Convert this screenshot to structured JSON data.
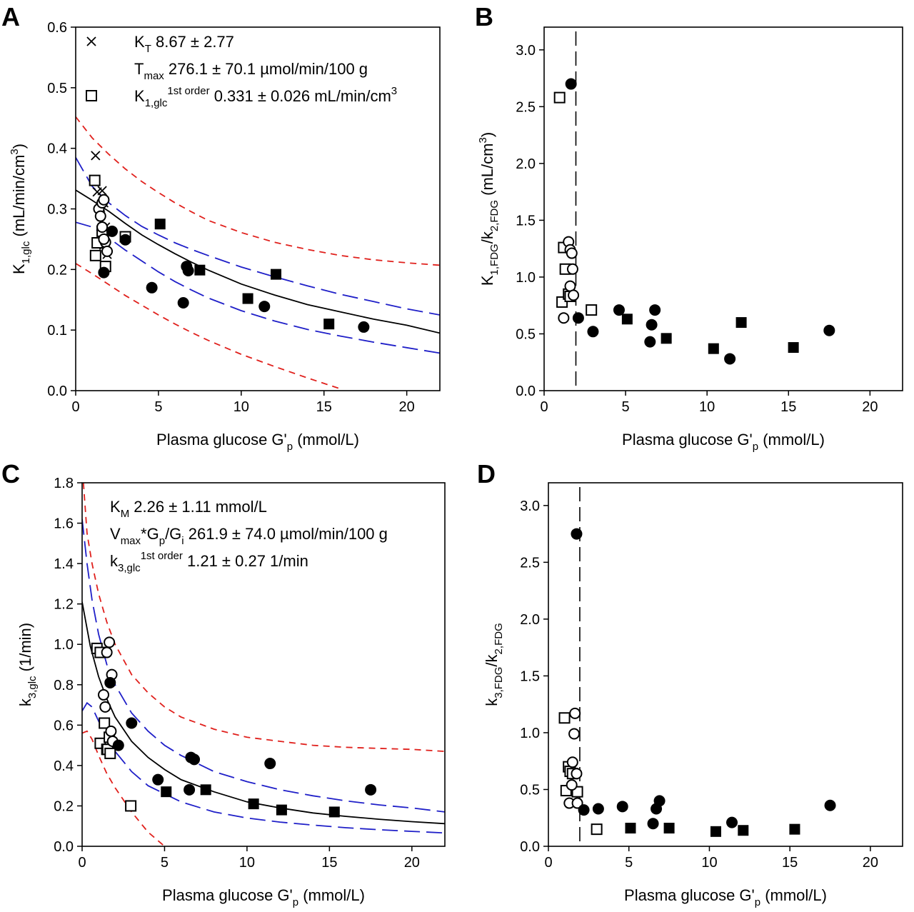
{
  "chart_data": [
    {
      "panel_label": "A",
      "type": "scatter",
      "xlabel": {
        "main": "Plasma glucose G'",
        "sub": "p",
        "tail": " (mmol/L)"
      },
      "ylabel": {
        "main": "K",
        "sub": "1,glc",
        "tail": " (mL/min/cm",
        "sup": "3",
        "end": ")"
      },
      "xlim": [
        0,
        22
      ],
      "ylim": [
        0,
        0.6
      ],
      "xticks": [
        0,
        5,
        10,
        15,
        20
      ],
      "yticks": [
        0.0,
        0.1,
        0.2,
        0.3,
        0.4,
        0.5,
        0.6
      ],
      "annotations": [
        {
          "marker": "x",
          "parts": [
            {
              "t": "K"
            },
            {
              "t": "T",
              "sub": true
            },
            {
              "t": " 8.67 ± 2.77"
            }
          ]
        },
        {
          "marker": "",
          "parts": [
            {
              "t": "T"
            },
            {
              "t": "max",
              "sub": true
            },
            {
              "t": " 276.1 ± 70.1 µmol/min/100 g"
            }
          ]
        },
        {
          "marker": "square-open",
          "parts": [
            {
              "t": "K"
            },
            {
              "t": "1,glc",
              "sub": true
            },
            {
              "t": "1st order",
              "sup": true
            },
            {
              "t": " 0.331 ± 0.026 mL/min/cm"
            },
            {
              "t": "3",
              "sup": true
            }
          ]
        }
      ],
      "curves": [
        {
          "style": "black-solid",
          "x": [
            0,
            1,
            2,
            3,
            4,
            5,
            6,
            7,
            8,
            10,
            12,
            14,
            16,
            18,
            20,
            22
          ],
          "y": [
            0.331,
            0.314,
            0.296,
            0.276,
            0.257,
            0.241,
            0.226,
            0.212,
            0.199,
            0.176,
            0.158,
            0.142,
            0.13,
            0.118,
            0.108,
            0.095
          ]
        },
        {
          "style": "blue-dashed",
          "x": [
            0,
            1,
            2,
            3,
            4,
            5,
            6,
            7,
            8,
            10,
            12,
            14,
            16,
            18,
            20,
            22
          ],
          "y": [
            0.385,
            0.337,
            0.31,
            0.289,
            0.271,
            0.257,
            0.244,
            0.233,
            0.223,
            0.204,
            0.188,
            0.173,
            0.159,
            0.147,
            0.135,
            0.125
          ]
        },
        {
          "style": "blue-dashed",
          "x": [
            0,
            1,
            2,
            3,
            4,
            5,
            6,
            7,
            8,
            10,
            12,
            14,
            16,
            18,
            20,
            22
          ],
          "y": [
            0.278,
            0.27,
            0.252,
            0.232,
            0.214,
            0.196,
            0.18,
            0.166,
            0.153,
            0.132,
            0.115,
            0.101,
            0.09,
            0.08,
            0.071,
            0.062
          ]
        },
        {
          "style": "red-dashed",
          "x": [
            0,
            1,
            2,
            3,
            4,
            5,
            6,
            7,
            8,
            10,
            12,
            14,
            16,
            18,
            20,
            22
          ],
          "y": [
            0.452,
            0.417,
            0.39,
            0.366,
            0.345,
            0.327,
            0.31,
            0.295,
            0.281,
            0.261,
            0.245,
            0.233,
            0.223,
            0.216,
            0.211,
            0.207
          ]
        },
        {
          "style": "red-dashed",
          "x": [
            0,
            1,
            2,
            3,
            4,
            5,
            6,
            7,
            8,
            10,
            12,
            14,
            16
          ],
          "y": [
            0.21,
            0.193,
            0.175,
            0.157,
            0.141,
            0.125,
            0.11,
            0.096,
            0.083,
            0.06,
            0.04,
            0.021,
            0.003
          ]
        }
      ],
      "series": [
        {
          "marker": "x",
          "x": [
            1.2,
            1.3,
            1.5,
            1.6,
            1.7,
            1.8,
            1.8,
            1.9,
            1.5,
            1.6,
            1.7
          ],
          "y": [
            0.388,
            0.328,
            0.3,
            0.33,
            0.31,
            0.27,
            0.25,
            0.225,
            0.29,
            0.262,
            0.24
          ]
        },
        {
          "marker": "square-open",
          "x": [
            1.15,
            1.2,
            1.3,
            1.6,
            1.8,
            3.0
          ],
          "y": [
            0.347,
            0.223,
            0.244,
            0.263,
            0.205,
            0.254
          ]
        },
        {
          "marker": "circle-open",
          "x": [
            1.4,
            1.5,
            1.6,
            1.7,
            1.8,
            1.9,
            1.6,
            1.7
          ],
          "y": [
            0.3,
            0.288,
            0.31,
            0.315,
            0.245,
            0.23,
            0.27,
            0.25
          ]
        },
        {
          "marker": "circle-filled",
          "x": [
            1.7,
            2.2,
            3.0,
            4.6,
            6.5,
            6.7,
            6.8,
            11.4,
            17.4
          ],
          "y": [
            0.195,
            0.263,
            0.249,
            0.17,
            0.145,
            0.205,
            0.198,
            0.139,
            0.105
          ]
        },
        {
          "marker": "square-filled",
          "x": [
            5.1,
            7.5,
            10.4,
            12.1,
            15.3
          ],
          "y": [
            0.275,
            0.199,
            0.152,
            0.192,
            0.11
          ]
        }
      ]
    },
    {
      "panel_label": "B",
      "type": "scatter",
      "xlabel": {
        "main": "Plasma glucose G'",
        "sub": "p",
        "tail": " (mmol/L)"
      },
      "ylabel": {
        "main": "K",
        "sub": "1,FDG",
        "tail": "/k",
        "sub2": "2,FDG",
        "tail2": " (mL/cm",
        "sup": "3",
        "end": ")"
      },
      "xlim": [
        0,
        22
      ],
      "ylim": [
        0,
        3.2
      ],
      "xticks": [
        0,
        5,
        10,
        15,
        20
      ],
      "yticks": [
        0.0,
        0.5,
        1.0,
        1.5,
        2.0,
        2.5,
        3.0
      ],
      "vline_x": 1.95,
      "series": [
        {
          "marker": "square-open",
          "x": [
            0.95,
            1.1,
            1.2,
            1.3,
            1.5,
            1.6,
            2.9
          ],
          "y": [
            2.58,
            0.78,
            1.26,
            1.07,
            0.85,
            0.83,
            0.71
          ]
        },
        {
          "marker": "circle-open",
          "x": [
            1.2,
            1.5,
            1.6,
            1.6,
            1.7,
            1.75,
            1.8
          ],
          "y": [
            0.64,
            1.31,
            0.92,
            1.24,
            1.21,
            1.07,
            0.84
          ]
        },
        {
          "marker": "circle-filled",
          "x": [
            1.65,
            2.1,
            3.0,
            4.6,
            6.5,
            6.6,
            6.8,
            11.4,
            17.5
          ],
          "y": [
            2.7,
            0.64,
            0.52,
            0.71,
            0.43,
            0.58,
            0.71,
            0.28,
            0.53
          ]
        },
        {
          "marker": "square-filled",
          "x": [
            5.1,
            7.5,
            10.4,
            12.1,
            15.3
          ],
          "y": [
            0.63,
            0.46,
            0.37,
            0.6,
            0.38
          ]
        }
      ]
    },
    {
      "panel_label": "C",
      "type": "scatter",
      "xlabel": {
        "main": "Plasma glucose G'",
        "sub": "p",
        "tail": " (mmol/L)"
      },
      "ylabel": {
        "main": "k",
        "sub": "3,glc",
        "tail": " (1/min)"
      },
      "xlim": [
        0,
        22
      ],
      "ylim": [
        0,
        1.8
      ],
      "xticks": [
        0,
        5,
        10,
        15,
        20
      ],
      "yticks": [
        0.0,
        0.2,
        0.4,
        0.6,
        0.8,
        1.0,
        1.2,
        1.4,
        1.6,
        1.8
      ],
      "annotations": [
        {
          "marker": "",
          "parts": [
            {
              "t": "K"
            },
            {
              "t": "M",
              "sub": true
            },
            {
              "t": " 2.26 ± 1.11 mmol/L"
            }
          ]
        },
        {
          "marker": "",
          "parts": [
            {
              "t": "V"
            },
            {
              "t": "max",
              "sub": true
            },
            {
              "t": "*G"
            },
            {
              "t": "p",
              "sub": true
            },
            {
              "t": "/G"
            },
            {
              "t": "i",
              "sub": true
            },
            {
              "t": " 261.9 ± 74.0 µmol/min/100 g"
            }
          ]
        },
        {
          "marker": "",
          "parts": [
            {
              "t": "k"
            },
            {
              "t": "3,glc",
              "sub": true
            },
            {
              "t": "1st order",
              "sup": true
            },
            {
              "t": " 1.21 ± 0.27 1/min"
            }
          ]
        }
      ],
      "curves": [
        {
          "style": "black-solid",
          "x": [
            0,
            0.5,
            1,
            1.5,
            2,
            3,
            4,
            5,
            6,
            8,
            10,
            12,
            14,
            16,
            18,
            20,
            22
          ],
          "y": [
            1.21,
            0.99,
            0.84,
            0.73,
            0.64,
            0.52,
            0.44,
            0.38,
            0.33,
            0.27,
            0.22,
            0.19,
            0.165,
            0.148,
            0.134,
            0.122,
            0.112
          ]
        },
        {
          "style": "blue-dashed",
          "x": [
            0,
            0.3,
            0.6,
            1,
            1.5,
            2,
            3,
            4,
            5,
            6,
            8,
            10,
            12,
            14,
            16,
            18,
            20,
            22
          ],
          "y": [
            1.62,
            1.4,
            1.22,
            1.05,
            0.9,
            0.8,
            0.66,
            0.57,
            0.5,
            0.45,
            0.37,
            0.32,
            0.28,
            0.25,
            0.225,
            0.205,
            0.19,
            0.17
          ]
        },
        {
          "style": "blue-dashed",
          "x": [
            0,
            0.3,
            0.6,
            1,
            1.5,
            2,
            3,
            4,
            5,
            6,
            8,
            10,
            12,
            14,
            16,
            18,
            20,
            22
          ],
          "y": [
            0.67,
            0.71,
            0.69,
            0.62,
            0.54,
            0.47,
            0.37,
            0.3,
            0.26,
            0.22,
            0.17,
            0.14,
            0.12,
            0.105,
            0.092,
            0.082,
            0.074,
            0.066
          ]
        },
        {
          "style": "red-dashed",
          "x": [
            0.08,
            0.3,
            0.6,
            1,
            1.5,
            2,
            3,
            4,
            5,
            6,
            8,
            10,
            12,
            14,
            16,
            18,
            20,
            22
          ],
          "y": [
            1.8,
            1.55,
            1.4,
            1.25,
            1.11,
            1.0,
            0.85,
            0.76,
            0.69,
            0.64,
            0.58,
            0.54,
            0.52,
            0.5,
            0.49,
            0.485,
            0.48,
            0.47
          ]
        },
        {
          "style": "red-dashed",
          "x": [
            0,
            0.3,
            0.6,
            1,
            1.5,
            2,
            3,
            4,
            5
          ],
          "y": [
            0.56,
            0.57,
            0.53,
            0.45,
            0.36,
            0.29,
            0.17,
            0.07,
            0.0
          ]
        }
      ],
      "series": [
        {
          "marker": "square-open",
          "x": [
            0.9,
            1.1,
            1.1,
            1.35,
            1.5,
            1.55,
            1.65,
            1.7,
            2.95
          ],
          "y": [
            0.98,
            0.96,
            0.51,
            0.61,
            0.48,
            0.48,
            0.54,
            0.46,
            0.2
          ]
        },
        {
          "marker": "circle-open",
          "x": [
            1.3,
            1.4,
            1.5,
            1.65,
            1.75,
            1.8,
            1.85
          ],
          "y": [
            0.75,
            0.69,
            0.96,
            1.01,
            0.57,
            0.85,
            0.52
          ]
        },
        {
          "marker": "circle-filled",
          "x": [
            1.7,
            2.2,
            3.0,
            4.6,
            6.5,
            6.6,
            6.8,
            11.4,
            17.5
          ],
          "y": [
            0.81,
            0.5,
            0.61,
            0.33,
            0.28,
            0.44,
            0.43,
            0.41,
            0.28
          ]
        },
        {
          "marker": "square-filled",
          "x": [
            5.1,
            7.5,
            10.4,
            12.1,
            15.3
          ],
          "y": [
            0.27,
            0.28,
            0.21,
            0.18,
            0.17
          ]
        }
      ]
    },
    {
      "panel_label": "D",
      "type": "scatter",
      "xlabel": {
        "main": "Plasma glucose G'",
        "sub": "p",
        "tail": " (mmol/L)"
      },
      "ylabel": {
        "main": "k",
        "sub": "3,FDG",
        "tail": "/k",
        "sub2": "2,FDG"
      },
      "xlim": [
        0,
        22
      ],
      "ylim": [
        0,
        3.2
      ],
      "xticks": [
        0,
        5,
        10,
        15,
        20
      ],
      "yticks": [
        0.0,
        0.5,
        1.0,
        1.5,
        2.0,
        2.5,
        3.0
      ],
      "vline_x": 1.95,
      "series": [
        {
          "marker": "square-open",
          "x": [
            1.0,
            1.1,
            1.25,
            1.35,
            1.5,
            1.8,
            3.0
          ],
          "y": [
            1.13,
            0.49,
            0.7,
            0.66,
            0.64,
            0.48,
            0.15
          ]
        },
        {
          "marker": "circle-open",
          "x": [
            1.3,
            1.45,
            1.5,
            1.6,
            1.65,
            1.75,
            1.8
          ],
          "y": [
            0.38,
            0.54,
            0.74,
            0.99,
            1.17,
            0.64,
            0.38
          ]
        },
        {
          "marker": "circle-filled",
          "x": [
            1.75,
            2.2,
            3.1,
            4.6,
            6.5,
            6.7,
            6.9,
            11.4,
            17.5
          ],
          "y": [
            2.75,
            0.32,
            0.33,
            0.35,
            0.2,
            0.33,
            0.4,
            0.21,
            0.36
          ]
        },
        {
          "marker": "square-filled",
          "x": [
            5.1,
            7.5,
            10.4,
            12.1,
            15.3
          ],
          "y": [
            0.16,
            0.16,
            0.13,
            0.14,
            0.15
          ]
        }
      ]
    }
  ]
}
